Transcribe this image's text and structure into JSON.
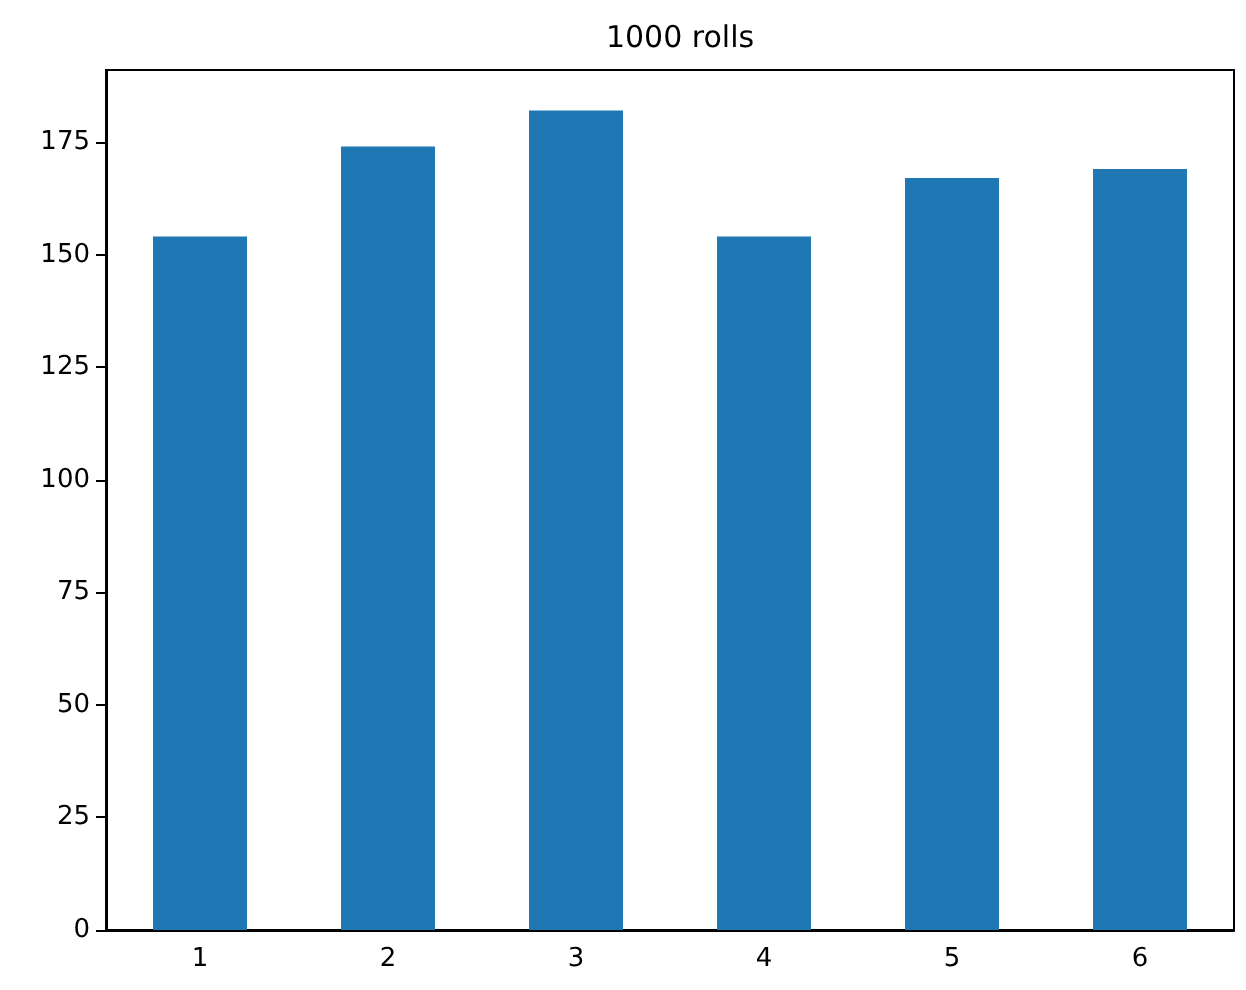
{
  "chart_data": {
    "type": "bar",
    "title": "1000 rolls",
    "categories": [
      "1",
      "2",
      "3",
      "4",
      "5",
      "6"
    ],
    "values": [
      154,
      174,
      182,
      154,
      167,
      169
    ],
    "color": "#1f77b4",
    "ylim": [
      0,
      191
    ],
    "yticks": [
      0,
      25,
      50,
      75,
      100,
      125,
      150,
      175
    ],
    "grid": false
  }
}
